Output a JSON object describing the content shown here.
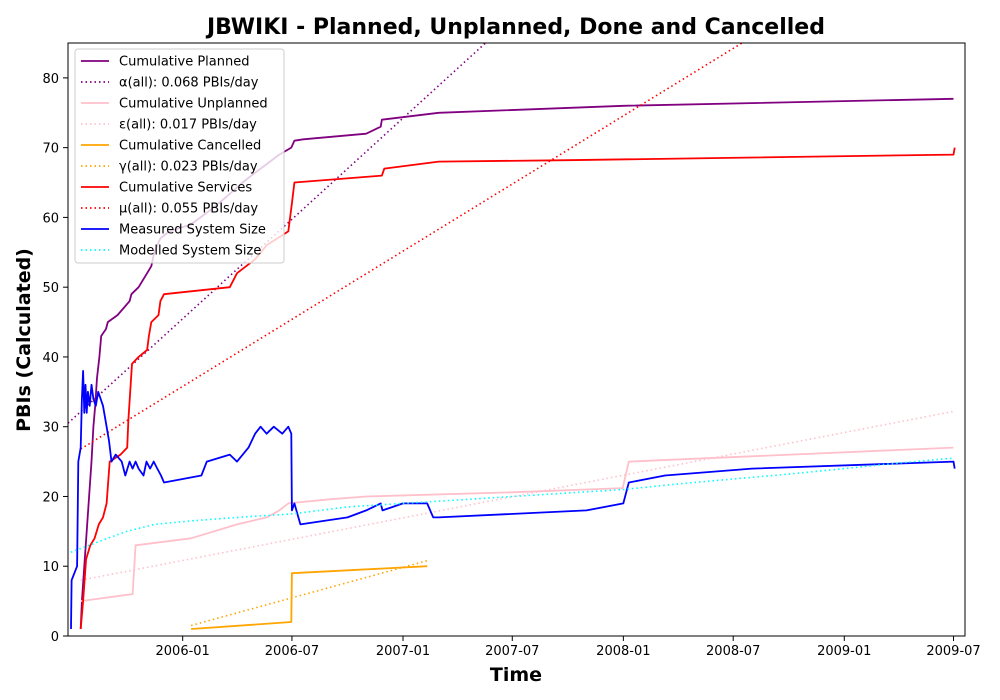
{
  "chart_data": {
    "type": "line",
    "title": "JBWIKI - Planned, Unplanned, Done  and Cancelled",
    "xlabel": "Time",
    "ylabel": "PBIs (Calculated)",
    "xlim": [
      "2005-06-25",
      "2009-07-20"
    ],
    "ylim": [
      0,
      85
    ],
    "x_ticks": [
      "2006-01",
      "2006-07",
      "2007-01",
      "2007-07",
      "2008-01",
      "2008-07",
      "2009-01",
      "2009-07"
    ],
    "y_ticks": [
      0,
      10,
      20,
      30,
      40,
      50,
      60,
      70,
      80
    ],
    "grid": false,
    "legend_position": "top-left",
    "series": [
      {
        "name": "Cumulative Planned",
        "color": "#800080",
        "style": "solid",
        "points": [
          [
            "2005-07-16",
            1
          ],
          [
            "2005-07-18",
            5
          ],
          [
            "2005-07-22",
            10
          ],
          [
            "2005-07-26",
            15
          ],
          [
            "2005-07-30",
            20
          ],
          [
            "2005-08-03",
            25
          ],
          [
            "2005-08-06",
            30
          ],
          [
            "2005-08-09",
            33
          ],
          [
            "2005-08-12",
            37
          ],
          [
            "2005-08-16",
            40
          ],
          [
            "2005-08-19",
            43
          ],
          [
            "2005-08-27",
            44
          ],
          [
            "2005-08-30",
            45
          ],
          [
            "2005-09-15",
            46
          ],
          [
            "2005-10-05",
            48
          ],
          [
            "2005-10-08",
            49
          ],
          [
            "2005-10-20",
            50
          ],
          [
            "2005-11-03",
            52
          ],
          [
            "2005-11-10",
            53
          ],
          [
            "2005-11-15",
            55
          ],
          [
            "2005-11-25",
            57
          ],
          [
            "2005-12-10",
            58
          ],
          [
            "2006-01-15",
            59
          ],
          [
            "2006-02-15",
            61
          ],
          [
            "2006-03-15",
            63
          ],
          [
            "2006-04-10",
            65
          ],
          [
            "2006-05-10",
            67
          ],
          [
            "2006-06-10",
            69
          ],
          [
            "2006-06-30",
            70
          ],
          [
            "2006-07-05",
            71
          ],
          [
            "2006-07-20",
            71.2
          ],
          [
            "2006-11-01",
            72
          ],
          [
            "2006-11-25",
            73
          ],
          [
            "2006-11-27",
            74
          ],
          [
            "2007-03-01",
            75
          ],
          [
            "2008-01-01",
            76
          ],
          [
            "2009-07-01",
            77
          ]
        ]
      },
      {
        "name": "α(all): 0.068 PBIs/day",
        "color": "#800080",
        "style": "dotted",
        "points": [
          [
            "2005-06-25",
            30.5
          ],
          [
            "2007-07-01",
            88.5
          ]
        ]
      },
      {
        "name": "Cumulative Unplanned",
        "color": "#ffc0cb",
        "style": "solid",
        "points": [
          [
            "2005-07-16",
            5
          ],
          [
            "2005-10-10",
            6
          ],
          [
            "2005-10-15",
            13
          ],
          [
            "2006-01-15",
            14
          ],
          [
            "2006-04-01",
            16
          ],
          [
            "2006-05-20",
            17
          ],
          [
            "2006-06-10",
            18
          ],
          [
            "2006-06-25",
            19
          ],
          [
            "2006-09-01",
            19.6
          ],
          [
            "2006-11-01",
            20
          ],
          [
            "2007-07-01",
            20.6
          ],
          [
            "2007-12-31",
            21.2
          ],
          [
            "2008-01-10",
            25
          ],
          [
            "2009-07-01",
            27
          ]
        ]
      },
      {
        "name": "ε(all): 0.017 PBIs/day",
        "color": "#ffc0cb",
        "style": "dotted",
        "points": [
          [
            "2005-07-16",
            8
          ],
          [
            "2009-07-01",
            32.2
          ]
        ]
      },
      {
        "name": "Cumulative Cancelled",
        "color": "#ffa500",
        "style": "solid",
        "points": [
          [
            "2006-01-15",
            1
          ],
          [
            "2006-06-30",
            2
          ],
          [
            "2006-07-01",
            9
          ],
          [
            "2007-02-10",
            10
          ]
        ]
      },
      {
        "name": "γ(all): 0.023 PBIs/day",
        "color": "#ffa500",
        "style": "dotted",
        "points": [
          [
            "2006-01-15",
            1.5
          ],
          [
            "2007-02-10",
            10.8
          ]
        ]
      },
      {
        "name": "Cumulative Services",
        "color": "#ff0000",
        "style": "solid",
        "points": [
          [
            "2005-07-16",
            1
          ],
          [
            "2005-07-20",
            5
          ],
          [
            "2005-07-25",
            11
          ],
          [
            "2005-08-01",
            13
          ],
          [
            "2005-08-08",
            14
          ],
          [
            "2005-08-15",
            16
          ],
          [
            "2005-08-22",
            17
          ],
          [
            "2005-08-28",
            19
          ],
          [
            "2005-09-02",
            25
          ],
          [
            "2005-09-20",
            26
          ],
          [
            "2005-10-01",
            27
          ],
          [
            "2005-10-03",
            31
          ],
          [
            "2005-10-06",
            35
          ],
          [
            "2005-10-09",
            39
          ],
          [
            "2005-10-20",
            40
          ],
          [
            "2005-11-03",
            41
          ],
          [
            "2005-11-06",
            43
          ],
          [
            "2005-11-10",
            45
          ],
          [
            "2005-11-22",
            46
          ],
          [
            "2005-11-25",
            48
          ],
          [
            "2005-12-01",
            49
          ],
          [
            "2006-03-20",
            50
          ],
          [
            "2006-04-01",
            52
          ],
          [
            "2006-05-01",
            54
          ],
          [
            "2006-05-20",
            56
          ],
          [
            "2006-06-25",
            58
          ],
          [
            "2006-07-01",
            62
          ],
          [
            "2006-07-05",
            65
          ],
          [
            "2006-11-27",
            66
          ],
          [
            "2006-12-01",
            67
          ],
          [
            "2007-03-01",
            68
          ],
          [
            "2007-10-01",
            68.2
          ],
          [
            "2009-07-01",
            69
          ],
          [
            "2009-07-03",
            70
          ]
        ]
      },
      {
        "name": "μ(all): 0.055 PBIs/day",
        "color": "#ff0000",
        "style": "dotted",
        "points": [
          [
            "2005-07-16",
            26.8
          ],
          [
            "2008-07-25",
            85.5
          ]
        ]
      },
      {
        "name": "Measured System Size",
        "color": "#0000ff",
        "style": "solid",
        "points": [
          [
            "2005-06-30",
            1
          ],
          [
            "2005-07-01",
            8
          ],
          [
            "2005-07-10",
            10
          ],
          [
            "2005-07-12",
            25
          ],
          [
            "2005-07-16",
            27
          ],
          [
            "2005-07-18",
            34
          ],
          [
            "2005-07-20",
            38
          ],
          [
            "2005-07-22",
            32
          ],
          [
            "2005-07-24",
            36
          ],
          [
            "2005-07-26",
            32
          ],
          [
            "2005-07-28",
            35
          ],
          [
            "2005-07-31",
            33
          ],
          [
            "2005-08-03",
            36
          ],
          [
            "2005-08-06",
            34
          ],
          [
            "2005-08-10",
            33
          ],
          [
            "2005-08-14",
            35
          ],
          [
            "2005-08-18",
            34
          ],
          [
            "2005-08-22",
            33
          ],
          [
            "2005-08-26",
            31
          ],
          [
            "2005-09-01",
            28
          ],
          [
            "2005-09-05",
            25
          ],
          [
            "2005-09-12",
            26
          ],
          [
            "2005-09-22",
            25
          ],
          [
            "2005-09-28",
            23
          ],
          [
            "2005-10-05",
            25
          ],
          [
            "2005-10-10",
            24
          ],
          [
            "2005-10-15",
            25
          ],
          [
            "2005-10-20",
            24
          ],
          [
            "2005-10-28",
            23
          ],
          [
            "2005-11-02",
            25
          ],
          [
            "2005-11-08",
            24
          ],
          [
            "2005-11-14",
            25
          ],
          [
            "2005-11-20",
            24
          ],
          [
            "2005-11-26",
            23
          ],
          [
            "2005-12-01",
            22
          ],
          [
            "2006-02-01",
            23
          ],
          [
            "2006-02-10",
            25
          ],
          [
            "2006-03-20",
            26
          ],
          [
            "2006-04-01",
            25
          ],
          [
            "2006-04-20",
            27
          ],
          [
            "2006-05-01",
            29
          ],
          [
            "2006-05-10",
            30
          ],
          [
            "2006-05-20",
            29
          ],
          [
            "2006-06-01",
            30
          ],
          [
            "2006-06-15",
            29
          ],
          [
            "2006-06-25",
            30
          ],
          [
            "2006-06-30",
            29
          ],
          [
            "2006-07-01",
            18
          ],
          [
            "2006-07-05",
            19
          ],
          [
            "2006-07-15",
            16
          ],
          [
            "2006-10-01",
            17
          ],
          [
            "2006-11-01",
            18
          ],
          [
            "2006-11-25",
            19
          ],
          [
            "2006-11-28",
            18
          ],
          [
            "2007-01-01",
            19
          ],
          [
            "2007-02-10",
            19
          ],
          [
            "2007-02-20",
            17
          ],
          [
            "2007-03-01",
            17
          ],
          [
            "2007-11-01",
            18
          ],
          [
            "2008-01-01",
            19
          ],
          [
            "2008-01-10",
            22
          ],
          [
            "2008-03-10",
            23
          ],
          [
            "2008-08-01",
            24
          ],
          [
            "2009-07-01",
            25
          ],
          [
            "2009-07-03",
            24
          ]
        ]
      },
      {
        "name": "Modelled System Size",
        "color": "#00ffff",
        "style": "dotted",
        "points": [
          [
            "2005-06-30",
            12
          ],
          [
            "2005-07-30",
            13
          ],
          [
            "2005-08-30",
            14
          ],
          [
            "2005-09-30",
            15
          ],
          [
            "2005-11-15",
            16
          ],
          [
            "2006-01-15",
            16.5
          ],
          [
            "2006-04-01",
            17
          ],
          [
            "2006-07-01",
            17.5
          ],
          [
            "2006-10-01",
            18.5
          ],
          [
            "2007-01-01",
            19
          ],
          [
            "2007-04-01",
            19.5
          ],
          [
            "2007-07-01",
            20
          ],
          [
            "2007-10-01",
            20.5
          ],
          [
            "2008-01-01",
            21
          ],
          [
            "2008-04-01",
            21.8
          ],
          [
            "2008-07-01",
            22.5
          ],
          [
            "2008-10-01",
            23.2
          ],
          [
            "2009-01-01",
            24
          ],
          [
            "2009-04-01",
            24.8
          ],
          [
            "2009-07-01",
            25.5
          ]
        ]
      }
    ]
  }
}
